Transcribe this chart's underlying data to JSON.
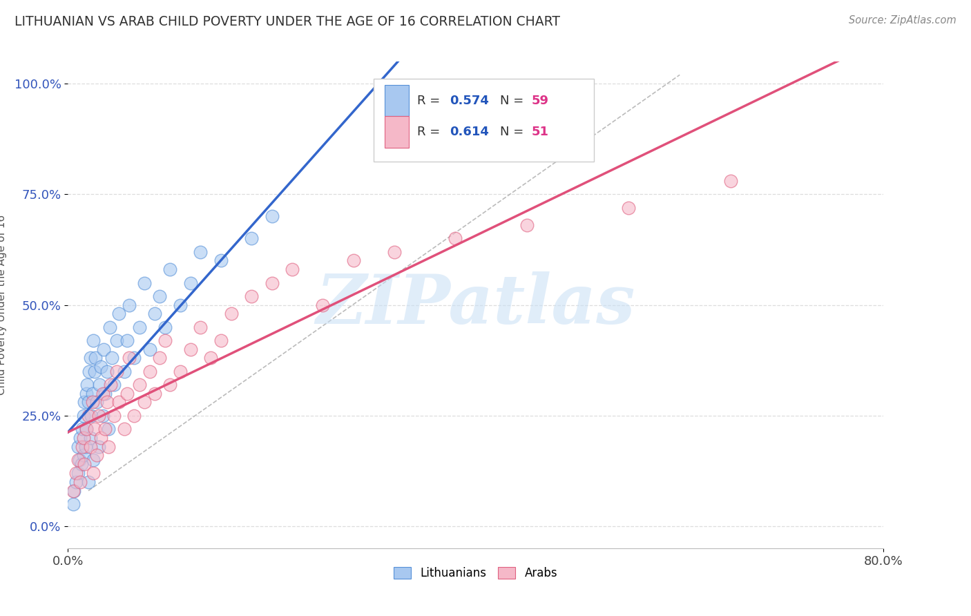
{
  "title": "LITHUANIAN VS ARAB CHILD POVERTY UNDER THE AGE OF 16 CORRELATION CHART",
  "source": "Source: ZipAtlas.com",
  "ylabel": "Child Poverty Under the Age of 16",
  "xlim": [
    0.0,
    0.8
  ],
  "ylim": [
    -0.05,
    1.05
  ],
  "ytick_labels": [
    "0.0%",
    "25.0%",
    "50.0%",
    "75.0%",
    "100.0%"
  ],
  "ytick_values": [
    0.0,
    0.25,
    0.5,
    0.75,
    1.0
  ],
  "legend_r1": "0.574",
  "legend_n1": "59",
  "legend_r2": "0.614",
  "legend_n2": "51",
  "blue_color": "#a8c8f0",
  "pink_color": "#f5b8c8",
  "blue_edge": "#5590d8",
  "pink_edge": "#e06080",
  "blue_line": "#3366cc",
  "pink_line": "#e0507a",
  "diagonal_color": "#aaaaaa",
  "watermark": "ZIPatlas",
  "background_color": "#ffffff",
  "grid_color": "#dddddd",
  "title_color": "#333333",
  "r_value_color": "#2255bb",
  "n_value_color": "#dd3388",
  "lit_x": [
    0.005,
    0.006,
    0.008,
    0.01,
    0.01,
    0.011,
    0.012,
    0.013,
    0.014,
    0.015,
    0.015,
    0.016,
    0.017,
    0.018,
    0.018,
    0.019,
    0.02,
    0.02,
    0.021,
    0.022,
    0.022,
    0.023,
    0.024,
    0.025,
    0.025,
    0.026,
    0.027,
    0.028,
    0.03,
    0.031,
    0.032,
    0.034,
    0.035,
    0.036,
    0.038,
    0.04,
    0.041,
    0.043,
    0.045,
    0.048,
    0.05,
    0.055,
    0.058,
    0.06,
    0.065,
    0.07,
    0.075,
    0.08,
    0.085,
    0.09,
    0.095,
    0.1,
    0.11,
    0.12,
    0.13,
    0.15,
    0.18,
    0.2,
    0.35
  ],
  "lit_y": [
    0.05,
    0.08,
    0.1,
    0.12,
    0.18,
    0.15,
    0.2,
    0.14,
    0.22,
    0.16,
    0.25,
    0.28,
    0.18,
    0.3,
    0.22,
    0.32,
    0.1,
    0.28,
    0.35,
    0.2,
    0.38,
    0.25,
    0.3,
    0.15,
    0.42,
    0.35,
    0.38,
    0.28,
    0.18,
    0.32,
    0.36,
    0.25,
    0.4,
    0.3,
    0.35,
    0.22,
    0.45,
    0.38,
    0.32,
    0.42,
    0.48,
    0.35,
    0.42,
    0.5,
    0.38,
    0.45,
    0.55,
    0.4,
    0.48,
    0.52,
    0.45,
    0.58,
    0.5,
    0.55,
    0.62,
    0.6,
    0.65,
    0.7,
    0.95
  ],
  "arab_x": [
    0.005,
    0.008,
    0.01,
    0.012,
    0.014,
    0.015,
    0.016,
    0.018,
    0.02,
    0.022,
    0.024,
    0.025,
    0.026,
    0.028,
    0.03,
    0.032,
    0.034,
    0.036,
    0.038,
    0.04,
    0.042,
    0.045,
    0.048,
    0.05,
    0.055,
    0.058,
    0.06,
    0.065,
    0.07,
    0.075,
    0.08,
    0.085,
    0.09,
    0.095,
    0.1,
    0.11,
    0.12,
    0.13,
    0.14,
    0.15,
    0.16,
    0.18,
    0.2,
    0.22,
    0.25,
    0.28,
    0.32,
    0.38,
    0.45,
    0.55,
    0.65
  ],
  "arab_y": [
    0.08,
    0.12,
    0.15,
    0.1,
    0.18,
    0.2,
    0.14,
    0.22,
    0.25,
    0.18,
    0.28,
    0.12,
    0.22,
    0.16,
    0.25,
    0.2,
    0.3,
    0.22,
    0.28,
    0.18,
    0.32,
    0.25,
    0.35,
    0.28,
    0.22,
    0.3,
    0.38,
    0.25,
    0.32,
    0.28,
    0.35,
    0.3,
    0.38,
    0.42,
    0.32,
    0.35,
    0.4,
    0.45,
    0.38,
    0.42,
    0.48,
    0.52,
    0.55,
    0.58,
    0.5,
    0.6,
    0.62,
    0.65,
    0.68,
    0.72,
    0.78
  ]
}
